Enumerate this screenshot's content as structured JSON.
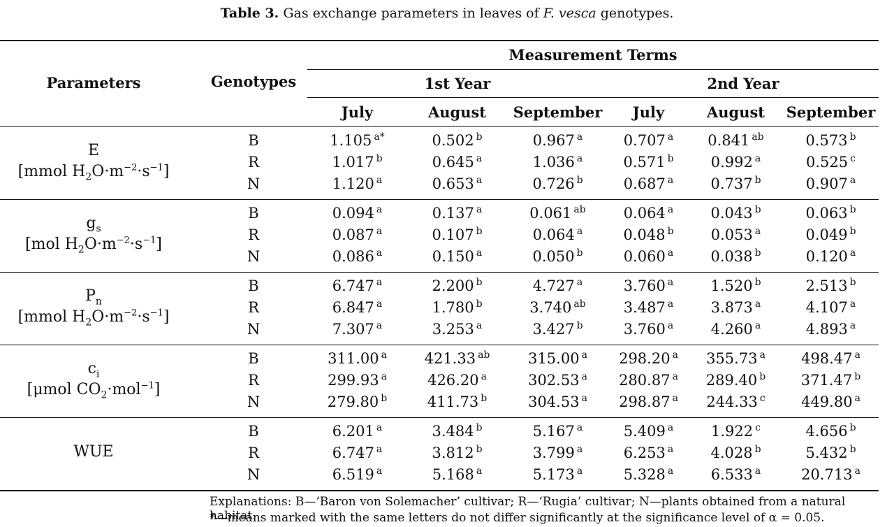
{
  "caption": {
    "label": "Table 3.",
    "text_before": "Gas exchange parameters in leaves of ",
    "species": "F. vesca",
    "text_after": " genotypes."
  },
  "header": {
    "parameters": "Parameters",
    "genotypes": "Genotypes",
    "measurement_terms": "Measurement Terms",
    "years": [
      "1st Year",
      "2nd Year"
    ],
    "months": [
      "July",
      "August",
      "September",
      "July",
      "August",
      "September"
    ]
  },
  "groups": [
    {
      "name": "E",
      "unit_html": "[mmol H<sub>2</sub>O·m<sup>−2</sup>·s<sup>−1</sup>]",
      "rows": [
        {
          "genotype": "B",
          "values": [
            [
              "1.105",
              "a*"
            ],
            [
              "0.502",
              "b"
            ],
            [
              "0.967",
              "a"
            ],
            [
              "0.707",
              "a"
            ],
            [
              "0.841",
              "ab"
            ],
            [
              "0.573",
              "b"
            ]
          ]
        },
        {
          "genotype": "R",
          "values": [
            [
              "1.017",
              "b"
            ],
            [
              "0.645",
              "a"
            ],
            [
              "1.036",
              "a"
            ],
            [
              "0.571",
              "b"
            ],
            [
              "0.992",
              "a"
            ],
            [
              "0.525",
              "c"
            ]
          ]
        },
        {
          "genotype": "N",
          "values": [
            [
              "1.120",
              "a"
            ],
            [
              "0.653",
              "a"
            ],
            [
              "0.726",
              "b"
            ],
            [
              "0.687",
              "a"
            ],
            [
              "0.737",
              "b"
            ],
            [
              "0.907",
              "a"
            ]
          ]
        }
      ]
    },
    {
      "name_html": "g<sub>s</sub>",
      "unit_html": "[mol H<sub>2</sub>O·m<sup>−2</sup>·s<sup>−1</sup>]",
      "rows": [
        {
          "genotype": "B",
          "values": [
            [
              "0.094",
              "a"
            ],
            [
              "0.137",
              "a"
            ],
            [
              "0.061",
              "ab"
            ],
            [
              "0.064",
              "a"
            ],
            [
              "0.043",
              "b"
            ],
            [
              "0.063",
              "b"
            ]
          ]
        },
        {
          "genotype": "R",
          "values": [
            [
              "0.087",
              "a"
            ],
            [
              "0.107",
              "b"
            ],
            [
              "0.064",
              "a"
            ],
            [
              "0.048",
              "b"
            ],
            [
              "0.053",
              "a"
            ],
            [
              "0.049",
              "b"
            ]
          ]
        },
        {
          "genotype": "N",
          "values": [
            [
              "0.086",
              "a"
            ],
            [
              "0.150",
              "a"
            ],
            [
              "0.050",
              "b"
            ],
            [
              "0.060",
              "a"
            ],
            [
              "0.038",
              "b"
            ],
            [
              "0.120",
              "a"
            ]
          ]
        }
      ]
    },
    {
      "name_html": "P<sub>n</sub>",
      "unit_html": "[mmol H<sub>2</sub>O·m<sup>−2</sup>·s<sup>−1</sup>]",
      "rows": [
        {
          "genotype": "B",
          "values": [
            [
              "6.747",
              "a"
            ],
            [
              "2.200",
              "b"
            ],
            [
              "4.727",
              "a"
            ],
            [
              "3.760",
              "a"
            ],
            [
              "1.520",
              "b"
            ],
            [
              "2.513",
              "b"
            ]
          ]
        },
        {
          "genotype": "R",
          "values": [
            [
              "6.847",
              "a"
            ],
            [
              "1.780",
              "b"
            ],
            [
              "3.740",
              "ab"
            ],
            [
              "3.487",
              "a"
            ],
            [
              "3.873",
              "a"
            ],
            [
              "4.107",
              "a"
            ]
          ]
        },
        {
          "genotype": "N",
          "values": [
            [
              "7.307",
              "a"
            ],
            [
              "3.253",
              "a"
            ],
            [
              "3.427",
              "b"
            ],
            [
              "3.760",
              "a"
            ],
            [
              "4.260",
              "a"
            ],
            [
              "4.893",
              "a"
            ]
          ]
        }
      ]
    },
    {
      "name_html": "c<sub>i</sub>",
      "unit_html": "[μmol CO<sub>2</sub>·mol<sup>−1</sup>]",
      "rows": [
        {
          "genotype": "B",
          "values": [
            [
              "311.00",
              "a"
            ],
            [
              "421.33",
              "ab"
            ],
            [
              "315.00",
              "a"
            ],
            [
              "298.20",
              "a"
            ],
            [
              "355.73",
              "a"
            ],
            [
              "498.47",
              "a"
            ]
          ]
        },
        {
          "genotype": "R",
          "values": [
            [
              "299.93",
              "a"
            ],
            [
              "426.20",
              "a"
            ],
            [
              "302.53",
              "a"
            ],
            [
              "280.87",
              "a"
            ],
            [
              "289.40",
              "b"
            ],
            [
              "371.47",
              "b"
            ]
          ]
        },
        {
          "genotype": "N",
          "values": [
            [
              "279.80",
              "b"
            ],
            [
              "411.73",
              "b"
            ],
            [
              "304.53",
              "a"
            ],
            [
              "298.87",
              "a"
            ],
            [
              "244.33",
              "c"
            ],
            [
              "449.80",
              "a"
            ]
          ]
        }
      ]
    },
    {
      "name": "WUE",
      "unit_html": "",
      "rows": [
        {
          "genotype": "B",
          "values": [
            [
              "6.201",
              "a"
            ],
            [
              "3.484",
              "b"
            ],
            [
              "5.167",
              "a"
            ],
            [
              "5.409",
              "a"
            ],
            [
              "1.922",
              "c"
            ],
            [
              "4.656",
              "b"
            ]
          ]
        },
        {
          "genotype": "R",
          "values": [
            [
              "6.747",
              "a"
            ],
            [
              "3.812",
              "b"
            ],
            [
              "3.799",
              "a"
            ],
            [
              "6.253",
              "a"
            ],
            [
              "4.028",
              "b"
            ],
            [
              "5.432",
              "b"
            ]
          ]
        },
        {
          "genotype": "N",
          "values": [
            [
              "6.519",
              "a"
            ],
            [
              "5.168",
              "a"
            ],
            [
              "5.173",
              "a"
            ],
            [
              "5.328",
              "a"
            ],
            [
              "6.533",
              "a"
            ],
            [
              "20.713",
              "a"
            ]
          ]
        }
      ]
    }
  ],
  "notes": [
    "Explanations: B—‘Baron von Solemacher’ cultivar; R—‘Rugia’ cultivar; N—plants obtained from a natural habitat.",
    "*—means marked with the same letters do not differ significantly at the significance level of α = 0.05."
  ]
}
